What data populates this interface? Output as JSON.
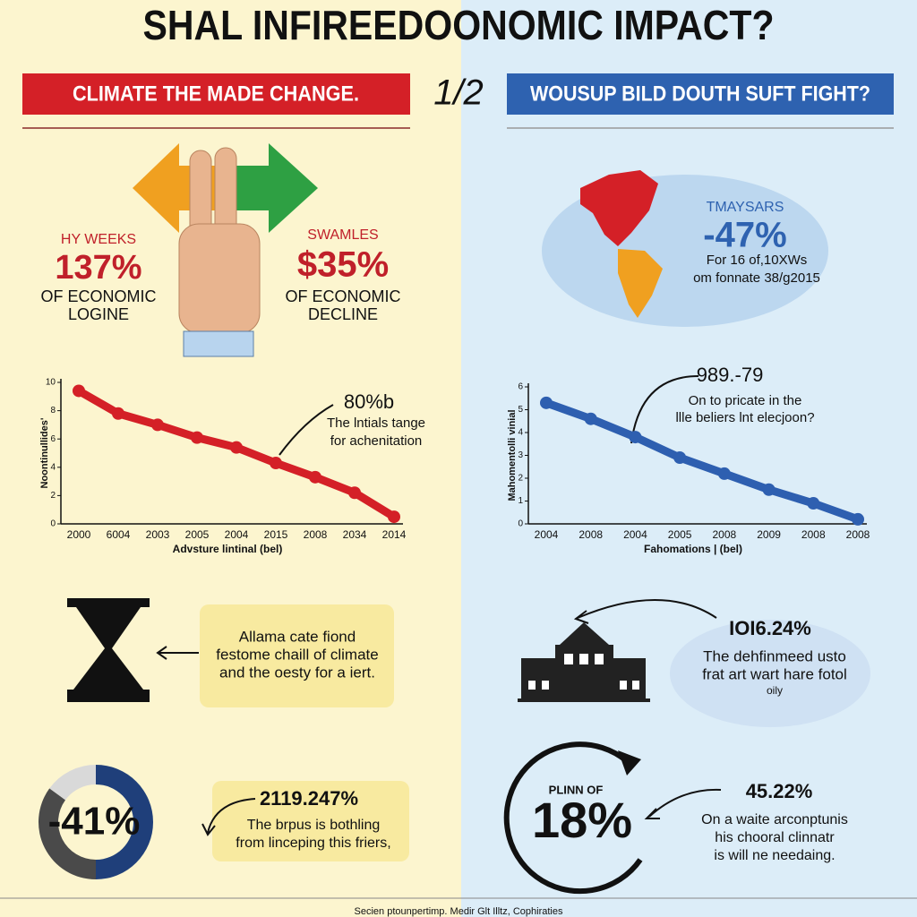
{
  "header": {
    "title": "SHAL INFIREEDOONOMIC IMPACT?",
    "page": "1/2"
  },
  "left": {
    "banner": "CLIMATE THE MADE CHANGE.",
    "stat1": {
      "label": "HY WEEKS",
      "value": "137%",
      "caption": [
        "OF ECONOMIC",
        "LOGINE"
      ]
    },
    "stat2": {
      "label": "SWAMLES",
      "value": "$35%",
      "caption": [
        "OF ECONOMIC",
        "DECLINE"
      ]
    },
    "line_chart": {
      "type": "line",
      "y_label": "Noontinullides'",
      "x_label": "Advsture lintinal (bel)",
      "categories": [
        "2000",
        "6004",
        "2003",
        "2005",
        "2004",
        "2015",
        "2008",
        "2034",
        "2014"
      ],
      "values": [
        9.4,
        7.8,
        7.0,
        6.1,
        5.4,
        4.3,
        3.3,
        2.2,
        0.5
      ],
      "color": "#d42027",
      "ylim": [
        0,
        10
      ],
      "yticks": [
        0,
        2,
        4,
        6,
        8,
        10
      ]
    },
    "annotation": {
      "value": "80%b",
      "text": [
        "The lntials tange",
        "for achenitation"
      ]
    },
    "note": [
      "Allama cate fiond",
      "festome chaill of climate",
      "and the oesty for a iert."
    ],
    "donut": {
      "type": "pie",
      "values": [
        50,
        35,
        15
      ],
      "colors": [
        "#1f3f7a",
        "#4a4a4a",
        "#d9d9d9"
      ],
      "center_label": "-41%"
    },
    "callout": {
      "value": "2119.247%",
      "text": [
        "The brpus is bothling",
        "from linceping this friers,"
      ]
    }
  },
  "right": {
    "banner": "WOUSUP BILD DOUTH SUFT FIGHT?",
    "map": {
      "label": "TMAYSARS",
      "value": "-47%",
      "text": [
        "For 16 of,10XWs",
        "om fonnate 38/g2015"
      ]
    },
    "line_chart": {
      "type": "line",
      "y_label": "Mahomentolli vinial",
      "x_label": "Fahomations | (bel)",
      "categories": [
        "2004",
        "2008",
        "2004",
        "2005",
        "2008",
        "2009",
        "2008",
        "2008"
      ],
      "values": [
        5.3,
        4.6,
        3.8,
        2.9,
        2.2,
        1.5,
        0.9,
        0.2
      ],
      "color": "#2e5fb0",
      "ylim": [
        0,
        6
      ],
      "yticks": [
        0,
        1,
        2,
        3,
        4,
        5,
        6
      ]
    },
    "annotation": {
      "value": "989.-79",
      "text": [
        "On to pricate in the",
        "llle beliers lnt elecjoon?"
      ]
    },
    "building": {
      "value": "IOI6.24%",
      "text": [
        "The dehfinmeed usto",
        "frat art wart hare fotol",
        "oily"
      ]
    },
    "cycle": {
      "label": "PLINN OF",
      "value": "18%"
    },
    "callout": {
      "value": "45.22%",
      "text": [
        "On a waite arconptunis",
        "his chooral clinnatr",
        "is will ne needaing."
      ]
    }
  },
  "footer": "Secien ptounpertimp. Medir Glt Illtz, Cophiraties"
}
